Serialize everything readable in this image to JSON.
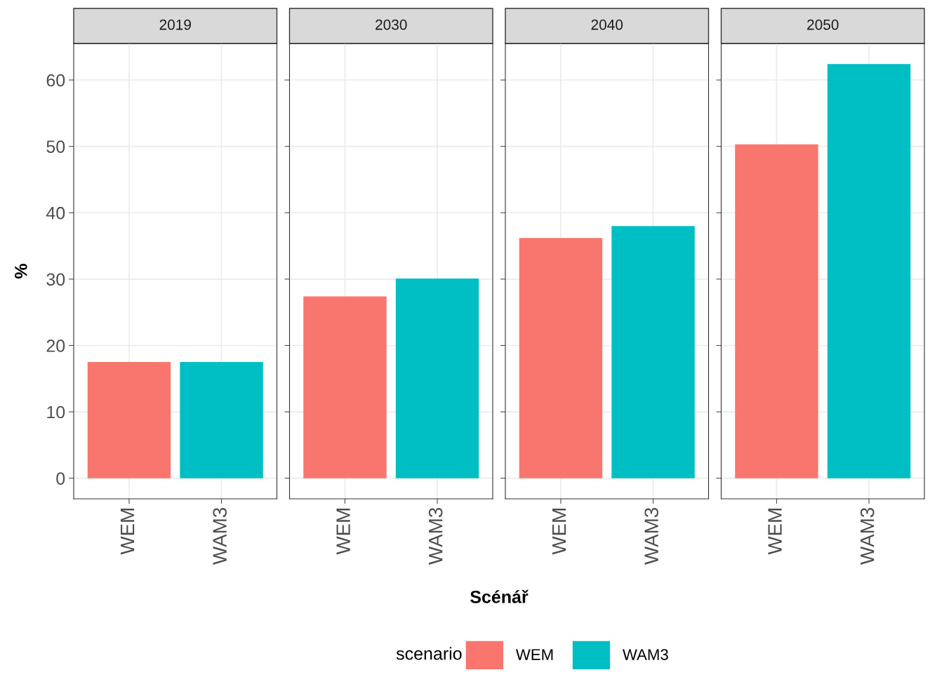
{
  "chart_data": [
    {
      "type": "bar",
      "title": "2019",
      "ylabel": "%",
      "legend_title": "scenario",
      "legend": "bottom",
      "categories": [
        "WEM",
        "WAM3"
      ],
      "ylim": [
        -3.1,
        65.5
      ],
      "yticks": [
        0,
        10,
        20,
        30,
        40,
        50,
        60
      ],
      "grid": true,
      "series": [
        {
          "name": "WEM",
          "color": "#f8766d",
          "values": [
            17.5,
            null
          ]
        },
        {
          "name": "WAM3",
          "color": "#00bfc4",
          "values": [
            null,
            17.5
          ]
        }
      ]
    },
    {
      "type": "bar",
      "title": "2030",
      "xlabel": "Scénář",
      "categories": [
        "WEM",
        "WAM3"
      ],
      "ylim": [
        -3.1,
        65.5
      ],
      "yticks": [
        0,
        10,
        20,
        30,
        40,
        50,
        60
      ],
      "grid": true,
      "tick_labels": "x",
      "series": [
        {
          "color": "#f8766d",
          "values": [
            27.4,
            null
          ]
        },
        {
          "color": "#00bfc4",
          "values": [
            null,
            30.1
          ]
        }
      ]
    },
    {
      "type": "bar",
      "title": "2040",
      "categories": [
        "WEM",
        "WAM3"
      ],
      "ylim": [
        -3.1,
        65.5
      ],
      "yticks": [
        0,
        10,
        20,
        30,
        40,
        50,
        60
      ],
      "grid": true,
      "tick_labels": "x",
      "series": [
        {
          "color": "#f8766d",
          "values": [
            36.2,
            null
          ]
        },
        {
          "color": "#00bfc4",
          "values": [
            null,
            38.0
          ]
        }
      ]
    },
    {
      "type": "bar",
      "title": "2050",
      "categories": [
        "WEM",
        "WAM3"
      ],
      "ylim": [
        -3.1,
        65.5
      ],
      "yticks": [
        0,
        10,
        20,
        30,
        40,
        50,
        60
      ],
      "grid": true,
      "tick_labels": "x",
      "series": [
        {
          "color": "#f8766d",
          "values": [
            50.3,
            null
          ]
        },
        {
          "color": "#00bfc4",
          "values": [
            null,
            62.4
          ]
        }
      ]
    }
  ]
}
